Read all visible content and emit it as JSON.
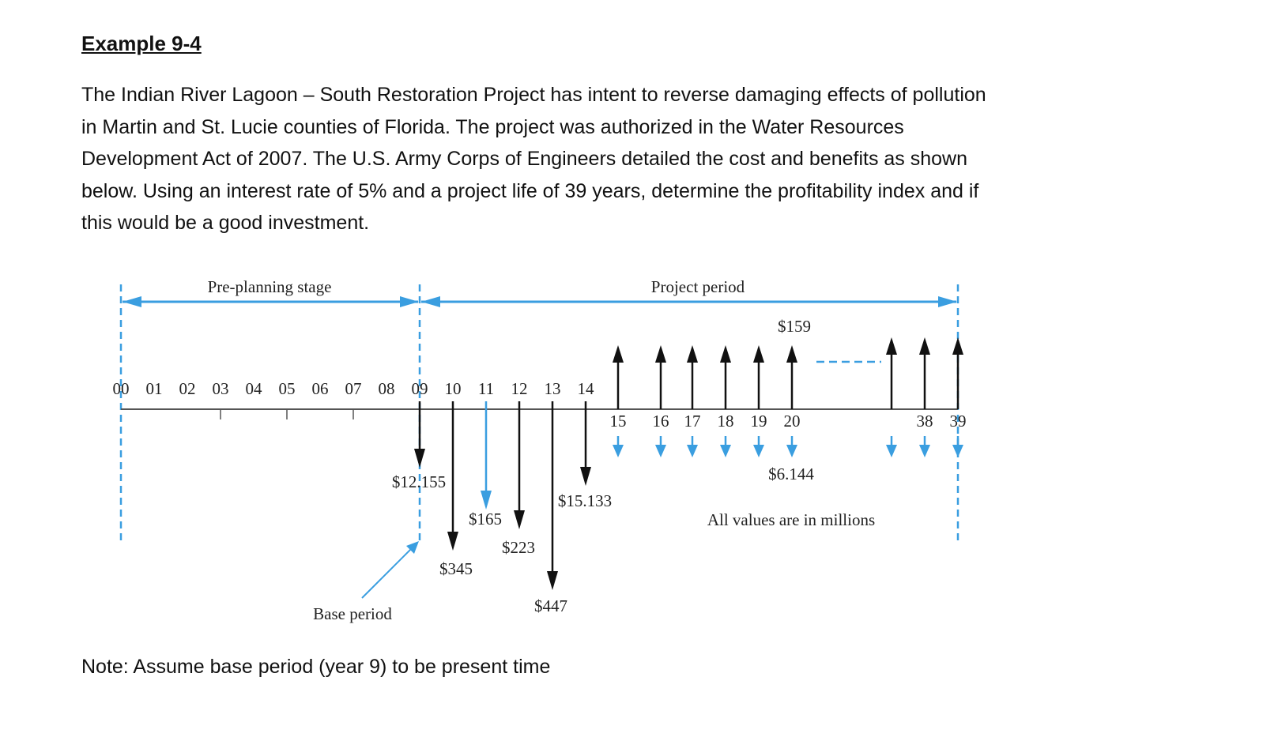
{
  "heading": "Example 9-4",
  "paragraph_lines": [
    "The Indian River Lagoon – South Restoration Project has intent to reverse damaging effects of pollution",
    "in Martin and St. Lucie counties of Florida. The project was authorized in the Water Resources",
    "Development Act of 2007. The U.S. Army Corps of Engineers detailed the cost and benefits as shown",
    "below. Using an interest rate of 5% and a project life of 39 years, determine the profitability index and if",
    "this would be a good investment."
  ],
  "note": "Note: Assume base period (year 9) to be present time",
  "diagram": {
    "stage_labels": {
      "pre_planning": "Pre-planning stage",
      "project": "Project period",
      "base": "Base period"
    },
    "units_note": "All values are in millions",
    "years_above": [
      "00",
      "01",
      "02",
      "03",
      "04",
      "05",
      "06",
      "07",
      "08",
      "09",
      "10",
      "11",
      "12",
      "13",
      "14"
    ],
    "years_below": [
      "15",
      "16",
      "17",
      "18",
      "19",
      "20",
      "38",
      "39"
    ],
    "costs": [
      {
        "year": 9,
        "label": "$12.155",
        "color": "#111111"
      },
      {
        "year": 10,
        "label": "$345",
        "color": "#111111"
      },
      {
        "year": 11,
        "label": "$165",
        "color": "#3a9ee0"
      },
      {
        "year": 12,
        "label": "$223",
        "color": "#111111"
      },
      {
        "year": 13,
        "label": "$447",
        "color": "#111111"
      },
      {
        "year": 14,
        "label": "$15.133",
        "color": "#111111"
      }
    ],
    "annual_benefit": {
      "label": "$159",
      "years": [
        15,
        16,
        17,
        18,
        19,
        20,
        37,
        38,
        39
      ]
    },
    "annual_om_cost": {
      "label": "$6.144",
      "years": [
        15,
        16,
        17,
        18,
        19,
        20,
        37,
        38,
        39
      ]
    },
    "colors": {
      "accent": "#3a9ee0",
      "arrow": "#111111",
      "axis": "#555555"
    }
  }
}
